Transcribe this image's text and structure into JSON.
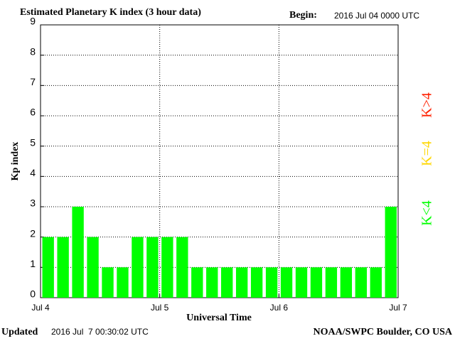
{
  "chart_data": {
    "type": "bar",
    "title": "Estimated Planetary K index (3 hour data)",
    "begin_label": "Begin:",
    "begin": "2016 Jul 04 0000 UTC",
    "ylabel": "Kp index",
    "xlabel": "Universal Time",
    "updated_label": "Updated",
    "updated": "2016 Jul  7 00:30:02 UTC",
    "credit": "NOAA/SWPC Boulder, CO USA",
    "x": [
      0,
      3,
      6,
      9,
      12,
      15,
      18,
      21,
      24,
      27,
      30,
      33,
      36,
      39,
      42,
      45,
      48,
      51,
      54,
      57,
      60,
      63,
      66,
      69
    ],
    "values": [
      2,
      2,
      3,
      2,
      1,
      1,
      2,
      2,
      2,
      2,
      1,
      1,
      1,
      1,
      1,
      1,
      1,
      1,
      1,
      1,
      1,
      1,
      1,
      3
    ],
    "color": "#00ff00",
    "xlim": [
      0,
      72
    ],
    "xticks": [
      {
        "value": 0,
        "label": "Jul 4"
      },
      {
        "value": 24,
        "label": "Jul 5"
      },
      {
        "value": 48,
        "label": "Jul 6"
      },
      {
        "value": 72,
        "label": "Jul 7"
      }
    ],
    "ylim": [
      0,
      9
    ],
    "yticks": [
      0,
      1,
      2,
      3,
      4,
      5,
      6,
      7,
      8,
      9
    ],
    "grid": true,
    "legend": [
      {
        "label": "K<4",
        "color": "#00ff00"
      },
      {
        "label": "K=4",
        "color": "#ffd700"
      },
      {
        "label": "K>4",
        "color": "#ff2000"
      }
    ]
  }
}
